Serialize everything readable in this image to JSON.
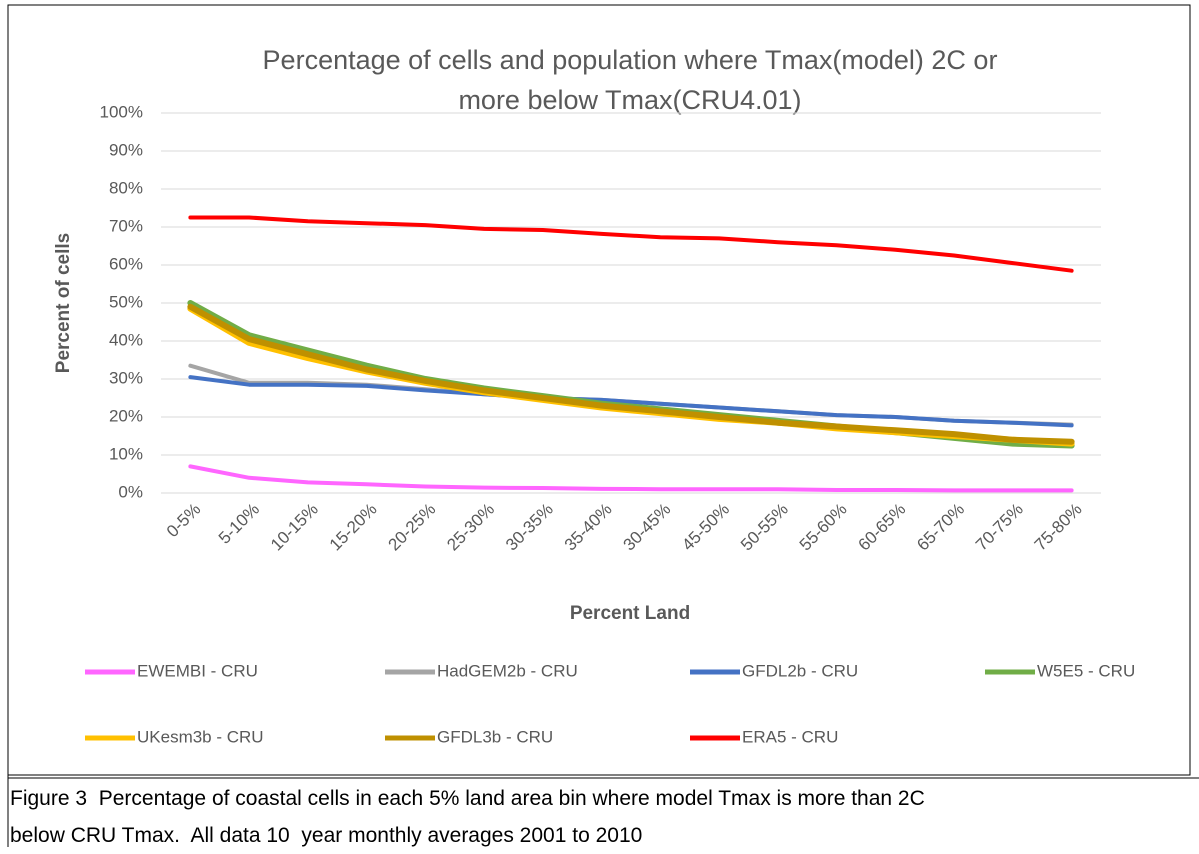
{
  "chart_data": {
    "type": "line",
    "title": [
      "Percentage of cells and population where Tmax(model) 2C or",
      "more below Tmax(CRU4.01)"
    ],
    "x_label": "Percent Land",
    "y_label": "Percent of cells",
    "categories": [
      "0-5%",
      "5-10%",
      "10-15%",
      "15-20%",
      "20-25%",
      "25-30%",
      "30-35%",
      "35-40%",
      "30-45%",
      "45-50%",
      "50-55%",
      "55-60%",
      "60-65%",
      "65-70%",
      "70-75%",
      "75-80%"
    ],
    "ylim": [
      0,
      100
    ],
    "yticks": [
      {
        "value": 0,
        "label": "0%"
      },
      {
        "value": 10,
        "label": "10%"
      },
      {
        "value": 20,
        "label": "20%"
      },
      {
        "value": 30,
        "label": "30%"
      },
      {
        "value": 40,
        "label": "40%"
      },
      {
        "value": 50,
        "label": "50%"
      },
      {
        "value": 60,
        "label": "60%"
      },
      {
        "value": 70,
        "label": "70%"
      },
      {
        "value": 80,
        "label": "80%"
      },
      {
        "value": 90,
        "label": "90%"
      },
      {
        "value": 100,
        "label": "100%"
      }
    ],
    "grid": true,
    "legend": "bottom",
    "series": [
      {
        "name": "EWEMBI - CRU",
        "color": "#ff66ff",
        "values": [
          7,
          4,
          2.8,
          2.3,
          1.7,
          1.4,
          1.3,
          1.1,
          1,
          1,
          1,
          0.8,
          0.8,
          0.7,
          0.7,
          0.7
        ]
      },
      {
        "name": "HadGEM2b - CRU",
        "color": "#a5a5a5",
        "values": [
          33.5,
          29,
          29,
          28.5,
          27.3,
          26,
          25,
          24.5,
          23.5,
          22.5,
          21.5,
          20.5,
          20,
          19,
          18.5,
          18
        ]
      },
      {
        "name": "GFDL2b - CRU",
        "color": "#4472c4",
        "values": [
          30.5,
          28.5,
          28.5,
          28.2,
          27,
          26,
          25,
          24.5,
          23.5,
          22.5,
          21.5,
          20.5,
          20,
          19,
          18.5,
          17.8
        ]
      },
      {
        "name": "W5E5 - CRU",
        "color": "#70ad47",
        "values": [
          50,
          41.5,
          37.5,
          33.5,
          30,
          27.5,
          25.5,
          23.5,
          22,
          20.5,
          19,
          17.5,
          16,
          14.5,
          13,
          12.5
        ]
      },
      {
        "name": "UKesm3b - CRU",
        "color": "#ffc000",
        "values": [
          48.5,
          39.5,
          35.5,
          32,
          29,
          26.5,
          24.5,
          22.5,
          21,
          19.5,
          18.5,
          17,
          16,
          15,
          14,
          13
        ]
      },
      {
        "name": "GFDL3b - CRU",
        "color": "#bf9000",
        "values": [
          49,
          40.5,
          36.5,
          32.5,
          29.5,
          27,
          25,
          23,
          21.5,
          20,
          18.5,
          17.5,
          16.5,
          15.5,
          14,
          13.5
        ]
      },
      {
        "name": "ERA5 - CRU",
        "color": "#ff0000",
        "values": [
          72.5,
          72.5,
          71.5,
          71,
          70.5,
          69.5,
          69.2,
          68.2,
          67.3,
          67,
          66,
          65.2,
          64,
          62.5,
          60.5,
          58.5
        ]
      }
    ],
    "caption": [
      "Figure 3  Percentage of coastal cells in each 5% land area bin where model Tmax is more than 2C",
      "below CRU Tmax.  All data 10  year monthly averages 2001 to 2010"
    ]
  }
}
